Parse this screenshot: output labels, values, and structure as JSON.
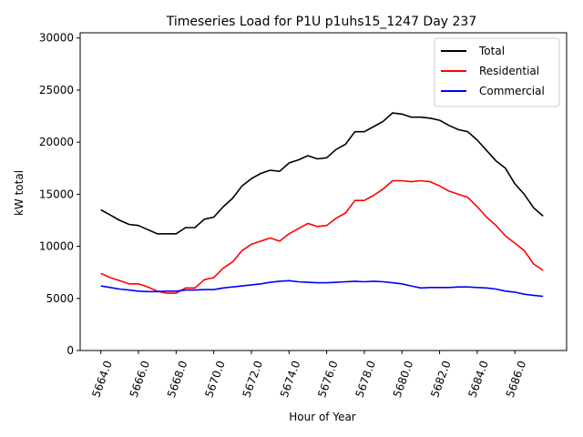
{
  "chart_data": {
    "type": "line",
    "title": "Timeseries Load for P1U p1uhs15_1247  Day 237",
    "xlabel": "Hour of Year",
    "ylabel": "kW total",
    "xlim": [
      5662.9,
      5688.75
    ],
    "ylim": [
      0,
      30500
    ],
    "xticks": [
      5664,
      5666,
      5668,
      5670,
      5672,
      5674,
      5676,
      5678,
      5680,
      5682,
      5684,
      5686
    ],
    "xtick_labels": [
      "5664.0",
      "5666.0",
      "5668.0",
      "5670.0",
      "5672.0",
      "5674.0",
      "5676.0",
      "5678.0",
      "5680.0",
      "5682.0",
      "5684.0",
      "5686.0"
    ],
    "yticks": [
      0,
      5000,
      10000,
      15000,
      20000,
      25000,
      30000
    ],
    "ytick_labels": [
      "0",
      "5000",
      "10000",
      "15000",
      "20000",
      "25000",
      "30000"
    ],
    "legend_position": "top-right",
    "x": [
      5664,
      5664.5,
      5665,
      5665.5,
      5666,
      5666.5,
      5667,
      5667.5,
      5668,
      5668.5,
      5669,
      5669.5,
      5670,
      5670.5,
      5671,
      5671.5,
      5672,
      5672.5,
      5673,
      5673.5,
      5674,
      5674.5,
      5675,
      5675.5,
      5676,
      5676.5,
      5677,
      5677.5,
      5678,
      5678.5,
      5679,
      5679.5,
      5680,
      5680.5,
      5681,
      5681.5,
      5682,
      5682.5,
      5683,
      5683.5,
      5684,
      5684.5,
      5685,
      5685.5,
      5686,
      5686.5,
      5687,
      5687.5
    ],
    "series": [
      {
        "name": "Total",
        "color": "#000000",
        "values": [
          13500,
          13000,
          12500,
          12100,
          12000,
          11600,
          11200,
          11200,
          11200,
          11800,
          11800,
          12600,
          12800,
          13800,
          14600,
          15800,
          16500,
          17000,
          17300,
          17200,
          18000,
          18300,
          18700,
          18400,
          18500,
          19300,
          19800,
          21000,
          21000,
          21500,
          22000,
          22800,
          22700,
          22400,
          22400,
          22300,
          22100,
          21600,
          21200,
          21000,
          20200,
          19200,
          18200,
          17500,
          16000,
          15000,
          13700,
          12900
        ]
      },
      {
        "name": "Residential",
        "color": "#ff0000",
        "values": [
          7400,
          7000,
          6700,
          6400,
          6400,
          6100,
          5700,
          5500,
          5500,
          6000,
          6000,
          6800,
          7000,
          7900,
          8500,
          9600,
          10200,
          10500,
          10800,
          10500,
          11200,
          11700,
          12200,
          11900,
          12000,
          12700,
          13200,
          14400,
          14400,
          14900,
          15500,
          16300,
          16300,
          16200,
          16300,
          16200,
          15800,
          15300,
          15000,
          14700,
          13800,
          12800,
          12000,
          11000,
          10300,
          9600,
          8300,
          7700
        ]
      },
      {
        "name": "Commercial",
        "color": "#0000ff",
        "values": [
          6200,
          6050,
          5900,
          5800,
          5700,
          5650,
          5650,
          5700,
          5700,
          5800,
          5800,
          5850,
          5850,
          6000,
          6100,
          6200,
          6300,
          6400,
          6550,
          6650,
          6700,
          6600,
          6550,
          6500,
          6500,
          6550,
          6600,
          6650,
          6600,
          6650,
          6600,
          6500,
          6400,
          6200,
          6000,
          6050,
          6050,
          6050,
          6100,
          6100,
          6050,
          6000,
          5900,
          5700,
          5600,
          5400,
          5300,
          5200
        ]
      }
    ]
  }
}
